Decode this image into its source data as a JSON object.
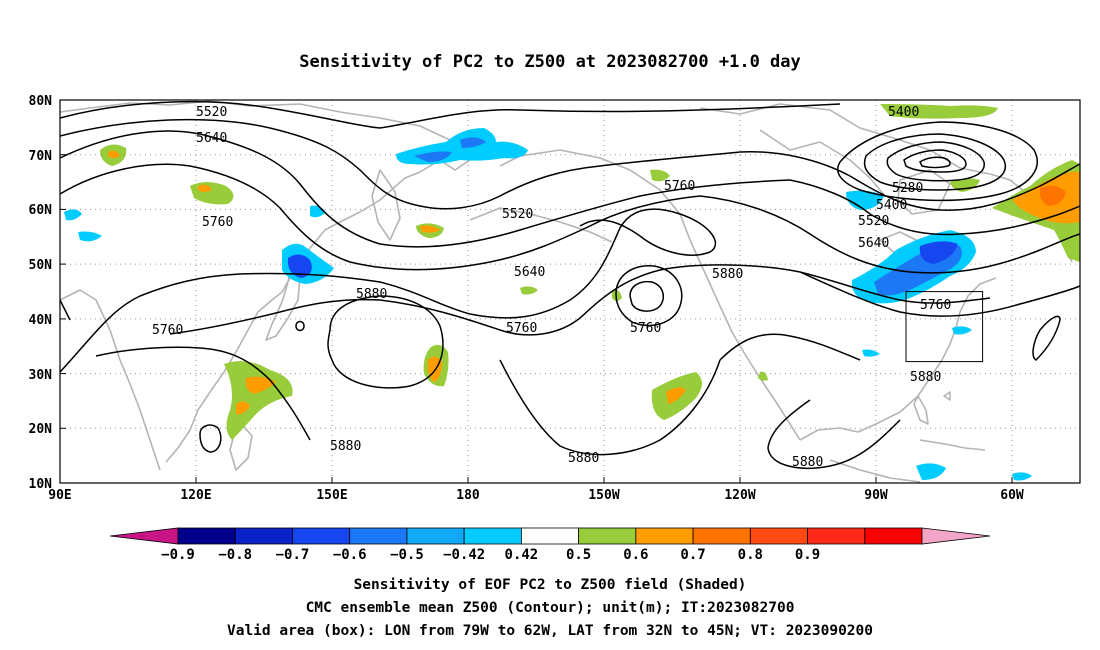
{
  "title": "Sensitivity of PC2 to Z500 at 2023082700 +1.0 day",
  "lat_labels": [
    "80N",
    "70N",
    "60N",
    "50N",
    "40N",
    "30N",
    "20N",
    "10N"
  ],
  "lon_labels": [
    "90E",
    "120E",
    "150E",
    "180",
    "150W",
    "120W",
    "90W",
    "60W"
  ],
  "contour_labels": {
    "c5520a": "5520",
    "c5640a": "5640",
    "c5760a": "5760",
    "c5760b": "5760",
    "c5520b": "5520",
    "c5640b": "5640",
    "c5880a": "5880",
    "c5760c": "5760",
    "c5760d": "5760",
    "c5880b": "5880",
    "c5880c": "5880",
    "c5880d": "5880",
    "c5880e": "5880",
    "c5400a": "5400",
    "c5280": "5280",
    "c5400b": "5400",
    "c5520c": "5520",
    "c5640c": "5640",
    "c5760e": "5760",
    "c5880f": "5880"
  },
  "colorbar": {
    "colors": [
      "#c71585",
      "#00008b",
      "#0a22c8",
      "#1646f0",
      "#1c78f4",
      "#12a8f5",
      "#00ccff",
      "#ffffff",
      "#98cc3a",
      "#ff9c00",
      "#ff7400",
      "#ff4a14",
      "#ff2a1a",
      "#ff0000",
      "#f4a6c8"
    ],
    "labels": [
      "−0.9",
      "−0.8",
      "−0.7",
      "−0.6",
      "−0.5",
      "−0.42",
      "0.42",
      "0.5",
      "0.6",
      "0.7",
      "0.8",
      "0.9"
    ]
  },
  "caption": {
    "line1": "Sensitivity of EOF PC2 to Z500 field (Shaded)",
    "line2": "CMC ensemble mean Z500 (Contour); unit(m); IT:2023082700",
    "line3": "Valid area (box): LON from 79W to 62W, LAT from 32N to 45N; VT: 2023090200"
  }
}
